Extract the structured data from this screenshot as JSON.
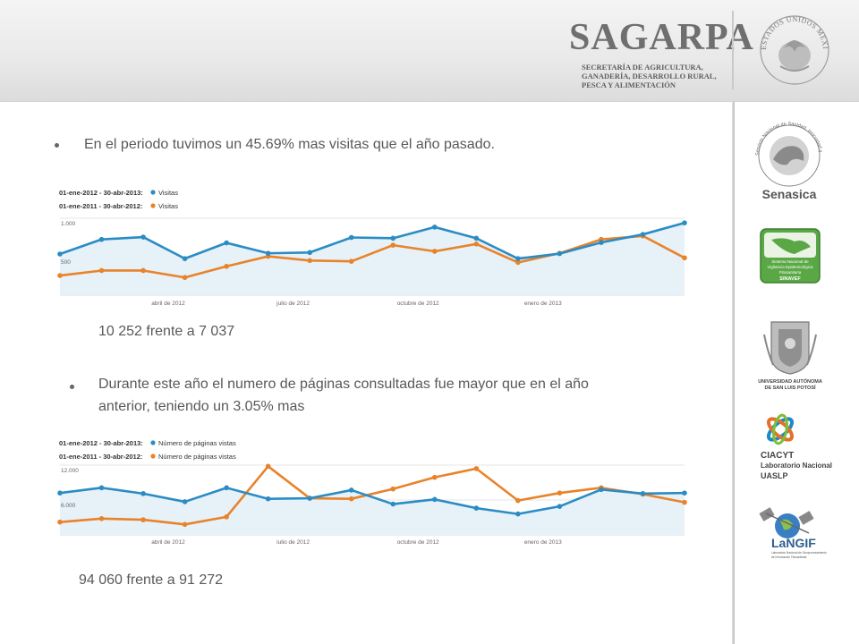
{
  "header": {
    "brand": "SAGARPA",
    "subtitle_lines": [
      "SECRETARÍA DE AGRICULTURA,",
      "GANADERÍA, DESARROLLO RURAL,",
      "PESCA Y ALIMENTACIÓN"
    ],
    "seal_text": "ESTADOS UNIDOS MEXICANOS"
  },
  "sidebar": {
    "logos": [
      {
        "name": "Senasica",
        "circle_text": "Servicio Nacional de Sanidad, Inocuidad y Calidad Agroalimentaria"
      },
      {
        "name": "SINAVEF",
        "text_lines": [
          "Sistema Nacional de",
          "Vigilancia Epidemiológica",
          "Fitosanitaria"
        ]
      },
      {
        "name_lines": [
          "UNIVERSIDAD AUTÓNOMA",
          "DE SAN LUIS POTOSÍ"
        ]
      },
      {
        "name_lines": [
          "CIACYT",
          "Laboratorio Nacional",
          "UASLP"
        ]
      },
      {
        "name": "LaNGIF",
        "text_lines": [
          "Laboratorio Nacional de Geoprocesamiento",
          "de Información Fitosanitaria"
        ]
      }
    ]
  },
  "content": {
    "bullet1": "En el periodo  tuvimos un 45.69% mas visitas que el año pasado.",
    "stat1": "10 252 frente a 7 037",
    "bullet2_line1": "Durante este año el numero de páginas consultadas fue mayor que en el año",
    "bullet2_line2": "anterior, teniendo un 3.05% mas",
    "stat2": "94 060 frente a 91 272"
  },
  "colors": {
    "blue": "#2b8cc4",
    "orange": "#e8832a",
    "fill": "#e6f1f8",
    "grid": "#dddddd"
  },
  "chart_data": [
    {
      "type": "line",
      "legend": [
        {
          "range": "01-ene-2012 - 30-abr-2013:",
          "name": "Visitas",
          "color": "#2b8cc4"
        },
        {
          "range": "01-ene-2011 - 30-abr-2012:",
          "name": "Visitas",
          "color": "#e8832a"
        }
      ],
      "y_ticks": [
        {
          "label": "1.000",
          "value": 1000
        },
        {
          "label": "500",
          "value": 500
        }
      ],
      "ylim": [
        0,
        1000
      ],
      "x_ticks": [
        {
          "label": "abril de 2012",
          "index": 2.6
        },
        {
          "label": "julio de 2012",
          "index": 5.6
        },
        {
          "label": "octubre de 2012",
          "index": 8.6
        },
        {
          "label": "enero de 2013",
          "index": 11.6
        }
      ],
      "x_count": 16,
      "series": [
        {
          "values": [
            535,
            725,
            755,
            475,
            680,
            545,
            555,
            750,
            740,
            885,
            740,
            475,
            540,
            685,
            790,
            940
          ]
        },
        {
          "values": [
            255,
            320,
            320,
            230,
            375,
            505,
            450,
            440,
            650,
            570,
            665,
            425,
            545,
            725,
            770,
            485
          ]
        }
      ]
    },
    {
      "type": "line",
      "legend": [
        {
          "range": "01-ene-2012 - 30-abr-2013:",
          "name": "Número de páginas vistas",
          "color": "#2b8cc4"
        },
        {
          "range": "01-ene-2011 - 30-abr-2012:",
          "name": "Número de páginas vistas",
          "color": "#e8832a"
        }
      ],
      "y_ticks": [
        {
          "label": "12.000",
          "value": 12000
        },
        {
          "label": "6.000",
          "value": 6000
        }
      ],
      "ylim": [
        0,
        12000
      ],
      "x_ticks": [
        {
          "label": "abril de 2012",
          "index": 2.6
        },
        {
          "label": "julio de 2012",
          "index": 5.6
        },
        {
          "label": "octubre de 2012",
          "index": 8.6
        },
        {
          "label": "enero de 2013",
          "index": 11.6
        }
      ],
      "x_count": 16,
      "series": [
        {
          "values": [
            7200,
            8100,
            7100,
            5700,
            8100,
            6200,
            6300,
            7700,
            5300,
            6100,
            4600,
            3600,
            4900,
            7800,
            7100,
            7200
          ]
        },
        {
          "values": [
            2200,
            2800,
            2600,
            1800,
            3100,
            11800,
            6300,
            6200,
            7900,
            9900,
            11400,
            5900,
            7200,
            8100,
            7000,
            5600
          ]
        }
      ]
    }
  ]
}
